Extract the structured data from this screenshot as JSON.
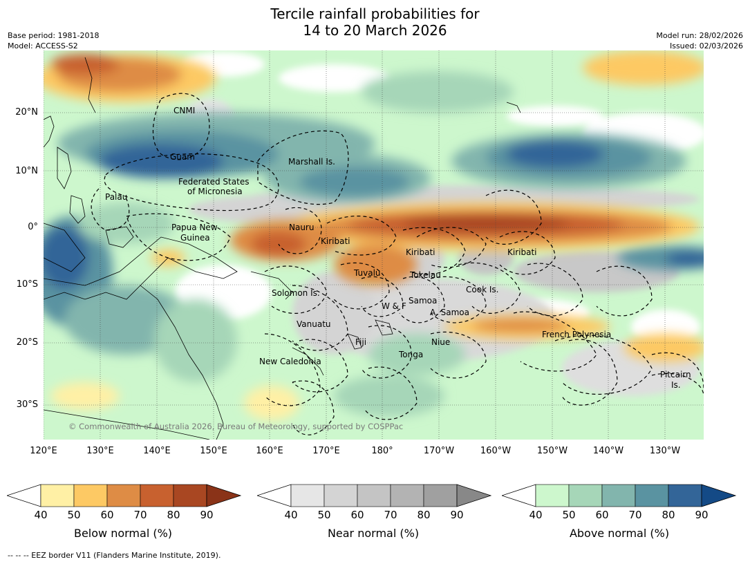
{
  "title": {
    "line1": "Tercile rainfall probabilities for",
    "line2": "14 to 20 March 2026"
  },
  "meta": {
    "base_period": "Base period: 1981-2018",
    "model": "Model: ACCESS-S2",
    "model_run": "Model run: 28/02/2026",
    "issued": "Issued: 02/03/2026"
  },
  "map": {
    "lat_labels": [
      "20°N",
      "10°N",
      "0°",
      "10°S",
      "20°S",
      "30°S"
    ],
    "lon_labels": [
      "120°E",
      "130°E",
      "140°E",
      "150°E",
      "160°E",
      "170°E",
      "180°",
      "170°W",
      "160°W",
      "150°W",
      "140°W",
      "130°W"
    ],
    "copyright": "© Commonwealth of Australia 2026, Bureau of Meteorology, supported by COSPPac",
    "regions": [
      "CNMI",
      "Guam",
      "Marshall Is.",
      "Federated States",
      "of Micronesia",
      "Palau",
      "Papua New",
      "Guinea",
      "Nauru",
      "Kiribati",
      "Kiribati",
      "Kiribati",
      "Tuvalu",
      "Tokelau",
      "Solomon Is.",
      "Samoa",
      "W & F",
      "A. Samoa",
      "Cook Is.",
      "Vanuatu",
      "Fiji",
      "Niue",
      "French Polynesia",
      "Tonga",
      "New Caledonia",
      "Pitcairn",
      "Is."
    ]
  },
  "colorbars": [
    {
      "title": "Below normal (%)",
      "ticks": [
        "40",
        "50",
        "60",
        "70",
        "80",
        "90"
      ],
      "colors": [
        "#fff0a5",
        "#fdc964",
        "#de8c45",
        "#c8612f",
        "#a94722",
        "#8a3318"
      ]
    },
    {
      "title": "Near normal (%)",
      "ticks": [
        "40",
        "50",
        "60",
        "70",
        "80",
        "90"
      ],
      "colors": [
        "#e6e6e6",
        "#d4d4d4",
        "#c4c4c4",
        "#b3b3b3",
        "#a0a0a0",
        "#888888"
      ]
    },
    {
      "title": "Above normal (%)",
      "ticks": [
        "40",
        "50",
        "60",
        "70",
        "80",
        "90"
      ],
      "colors": [
        "#cdf7cd",
        "#a6d6b8",
        "#82b5ad",
        "#5a93a1",
        "#336598",
        "#144a86"
      ]
    }
  ],
  "footer": "-- -- -- EEZ border V11 (Flanders Marine Institute, 2019)."
}
